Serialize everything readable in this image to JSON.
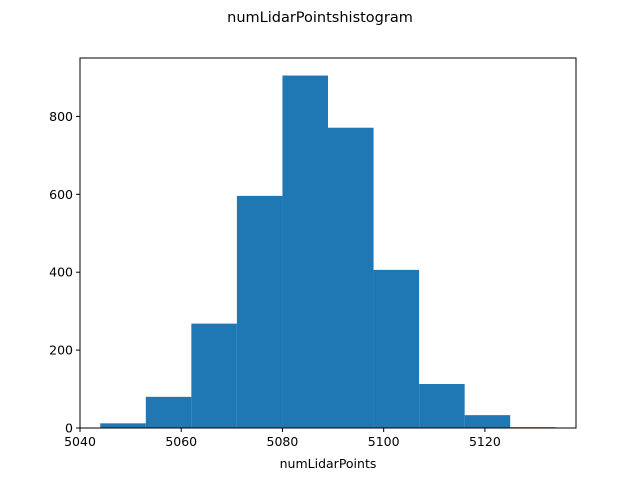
{
  "chart_data": {
    "type": "bar",
    "title": "numLidarPointshistogram",
    "xlabel": "numLidarPoints",
    "ylabel": "",
    "bar_color": "#1f77b4",
    "xlim": [
      5040,
      5138
    ],
    "ylim": [
      0,
      950
    ],
    "x_ticks": [
      5040,
      5060,
      5080,
      5100,
      5120
    ],
    "y_ticks": [
      0,
      200,
      400,
      600,
      800
    ],
    "grid": false,
    "legend": false,
    "bins": [
      {
        "x0": 5044,
        "x1": 5053,
        "count": 12
      },
      {
        "x0": 5053,
        "x1": 5062,
        "count": 80
      },
      {
        "x0": 5062,
        "x1": 5071,
        "count": 268
      },
      {
        "x0": 5071,
        "x1": 5080,
        "count": 596
      },
      {
        "x0": 5080,
        "x1": 5089,
        "count": 905
      },
      {
        "x0": 5089,
        "x1": 5098,
        "count": 771
      },
      {
        "x0": 5098,
        "x1": 5107,
        "count": 406
      },
      {
        "x0": 5107,
        "x1": 5116,
        "count": 113
      },
      {
        "x0": 5116,
        "x1": 5125,
        "count": 33
      },
      {
        "x0": 5125,
        "x1": 5134,
        "count": 2
      }
    ]
  }
}
